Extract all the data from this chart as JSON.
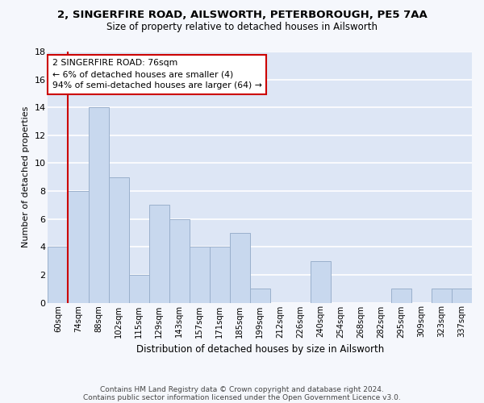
{
  "title1": "2, SINGERFIRE ROAD, AILSWORTH, PETERBOROUGH, PE5 7AA",
  "title2": "Size of property relative to detached houses in Ailsworth",
  "xlabel": "Distribution of detached houses by size in Ailsworth",
  "ylabel": "Number of detached properties",
  "categories": [
    "60sqm",
    "74sqm",
    "88sqm",
    "102sqm",
    "115sqm",
    "129sqm",
    "143sqm",
    "157sqm",
    "171sqm",
    "185sqm",
    "199sqm",
    "212sqm",
    "226sqm",
    "240sqm",
    "254sqm",
    "268sqm",
    "282sqm",
    "295sqm",
    "309sqm",
    "323sqm",
    "337sqm"
  ],
  "values": [
    4,
    8,
    14,
    9,
    2,
    7,
    6,
    4,
    4,
    5,
    1,
    0,
    0,
    3,
    0,
    0,
    0,
    1,
    0,
    1,
    1
  ],
  "bar_color": "#c8d8ee",
  "bar_edge_color": "#9ab0cc",
  "vline_color": "#cc0000",
  "vline_x": 0.5,
  "annotation_text": "2 SINGERFIRE ROAD: 76sqm\n← 6% of detached houses are smaller (4)\n94% of semi-detached houses are larger (64) →",
  "annotation_box_facecolor": "#ffffff",
  "annotation_box_edgecolor": "#cc0000",
  "ylim": [
    0,
    18
  ],
  "yticks": [
    0,
    2,
    4,
    6,
    8,
    10,
    12,
    14,
    16,
    18
  ],
  "fig_facecolor": "#f5f7fc",
  "ax_facecolor": "#dde6f5",
  "grid_color": "#ffffff",
  "footer1": "Contains HM Land Registry data © Crown copyright and database right 2024.",
  "footer2": "Contains public sector information licensed under the Open Government Licence v3.0."
}
